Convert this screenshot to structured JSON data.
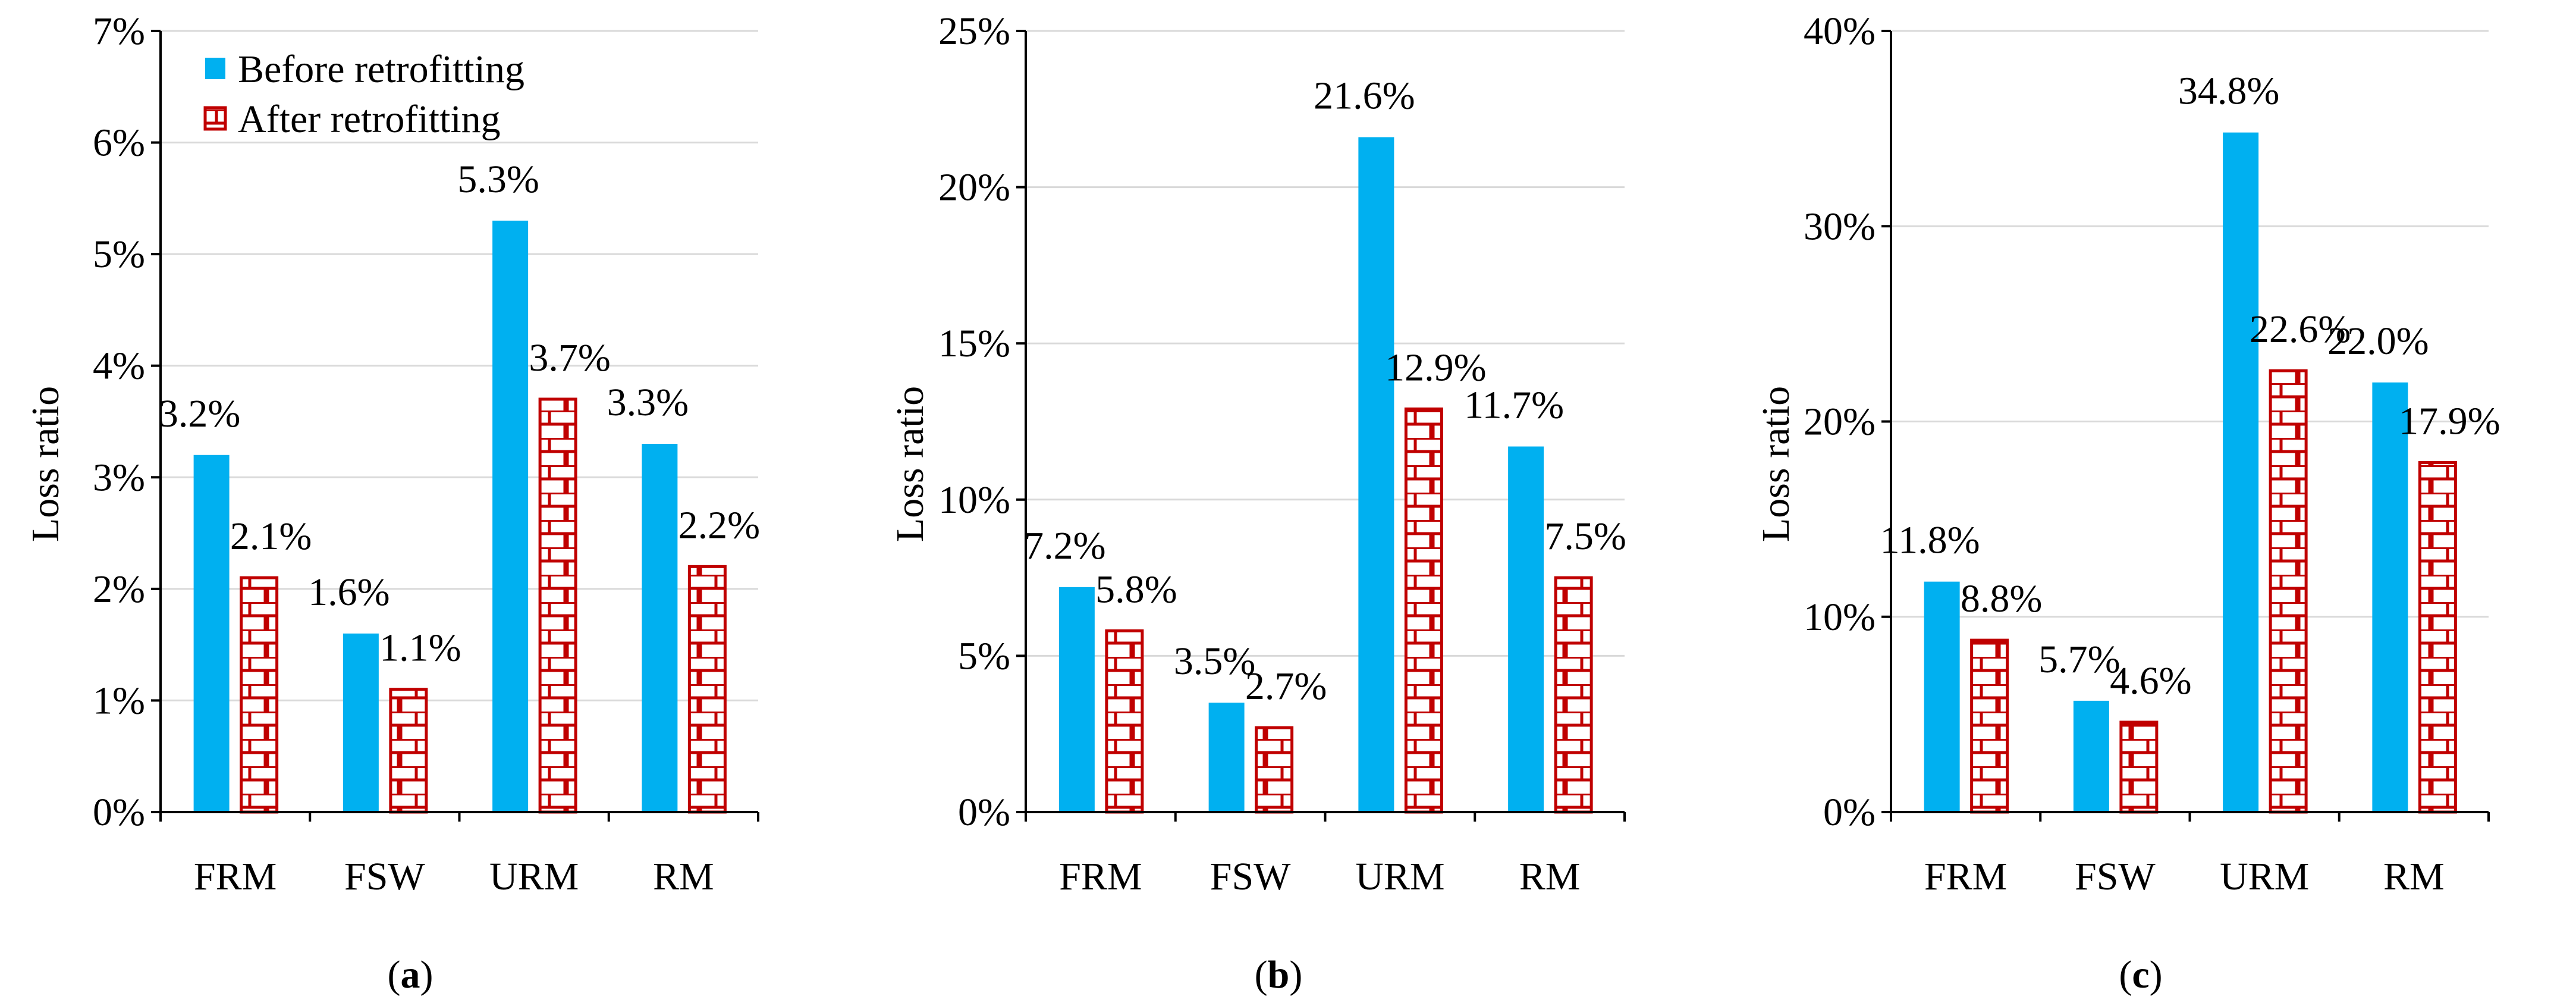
{
  "colors": {
    "before": "#00B0F0",
    "after_stroke": "#C00000",
    "after_fill": "#FFFFFF",
    "grid": "#D9D9D9",
    "axis": "#000000"
  },
  "legend": {
    "before_label": "Before retrofitting",
    "after_label": "After retrofitting",
    "placement": "top-left of panel (a)"
  },
  "chart_data": [
    {
      "panel": "(a)",
      "panel_letter": "a",
      "type": "bar",
      "ylabel": "Loss ratio",
      "ylim": [
        0,
        7
      ],
      "yticks": [
        "0%",
        "1%",
        "2%",
        "3%",
        "4%",
        "5%",
        "6%",
        "7%"
      ],
      "grid": true,
      "categories": [
        "FRM",
        "FSW",
        "URM",
        "RM"
      ],
      "series": [
        {
          "name": "Before retrofitting",
          "values": [
            3.2,
            1.6,
            5.3,
            3.3
          ],
          "labels": [
            "3.2%",
            "1.6%",
            "5.3%",
            "3.3%"
          ]
        },
        {
          "name": "After retrofitting",
          "values": [
            2.1,
            1.1,
            3.7,
            2.2
          ],
          "labels": [
            "2.1%",
            "1.1%",
            "3.7%",
            "2.2%"
          ]
        }
      ]
    },
    {
      "panel": "(b)",
      "panel_letter": "b",
      "type": "bar",
      "ylabel": "Loss ratio",
      "ylim": [
        0,
        25
      ],
      "yticks": [
        "0%",
        "5%",
        "10%",
        "15%",
        "20%",
        "25%"
      ],
      "grid": true,
      "categories": [
        "FRM",
        "FSW",
        "URM",
        "RM"
      ],
      "series": [
        {
          "name": "Before retrofitting",
          "values": [
            7.2,
            3.5,
            21.6,
            11.7
          ],
          "labels": [
            "7.2%",
            "3.5%",
            "21.6%",
            "11.7%"
          ]
        },
        {
          "name": "After retrofitting",
          "values": [
            5.8,
            2.7,
            12.9,
            7.5
          ],
          "labels": [
            "5.8%",
            "2.7%",
            "12.9%",
            "7.5%"
          ]
        }
      ]
    },
    {
      "panel": "(c)",
      "panel_letter": "c",
      "type": "bar",
      "ylabel": "Loss ratio",
      "ylim": [
        0,
        40
      ],
      "yticks": [
        "0%",
        "10%",
        "20%",
        "30%",
        "40%"
      ],
      "grid": true,
      "categories": [
        "FRM",
        "FSW",
        "URM",
        "RM"
      ],
      "series": [
        {
          "name": "Before retrofitting",
          "values": [
            11.8,
            5.7,
            34.8,
            22.0
          ],
          "labels": [
            "11.8%",
            "5.7%",
            "34.8%",
            "22.0%"
          ]
        },
        {
          "name": "After retrofitting",
          "values": [
            8.8,
            4.6,
            22.6,
            17.9
          ],
          "labels": [
            "8.8%",
            "4.6%",
            "22.6%",
            "17.9%"
          ]
        }
      ]
    }
  ]
}
